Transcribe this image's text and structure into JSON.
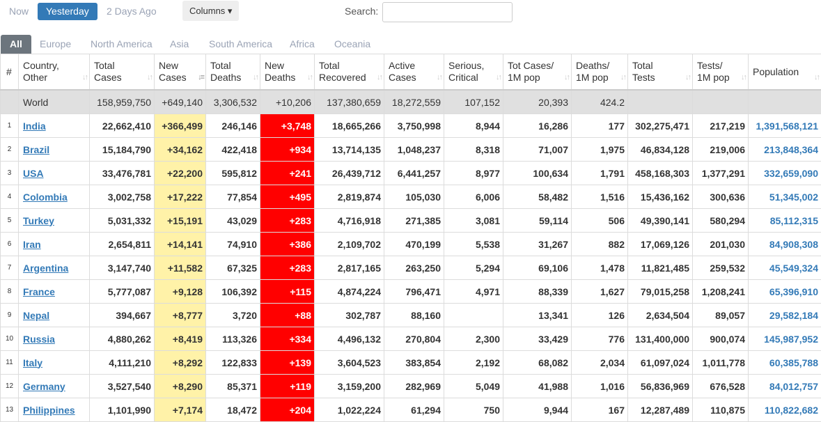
{
  "filters": {
    "now": "Now",
    "yesterday": "Yesterday",
    "two_days": "2 Days Ago",
    "columns": "Columns ▾",
    "search_label": "Search:",
    "search_value": ""
  },
  "tabs": [
    "All",
    "Europe",
    "North America",
    "Asia",
    "South America",
    "Africa",
    "Oceania"
  ],
  "headers": [
    [
      "#"
    ],
    [
      "Country,",
      "Other"
    ],
    [
      "Total",
      "Cases"
    ],
    [
      "New",
      "Cases"
    ],
    [
      "Total",
      "Deaths"
    ],
    [
      "New",
      "Deaths"
    ],
    [
      "Total",
      "Recovered"
    ],
    [
      "Active",
      "Cases"
    ],
    [
      "Serious,",
      "Critical"
    ],
    [
      "Tot Cases/",
      "1M pop"
    ],
    [
      "Deaths/",
      "1M pop"
    ],
    [
      "Total",
      "Tests"
    ],
    [
      "Tests/",
      "1M pop"
    ],
    [
      "Population"
    ]
  ],
  "world": [
    "",
    "World",
    "158,959,750",
    "+649,140",
    "3,306,532",
    "+10,206",
    "137,380,659",
    "18,272,559",
    "107,152",
    "20,393",
    "424.2",
    "",
    "",
    ""
  ],
  "rows": [
    [
      "1",
      "India",
      "22,662,410",
      "+366,499",
      "246,146",
      "+3,748",
      "18,665,266",
      "3,750,998",
      "8,944",
      "16,286",
      "177",
      "302,275,471",
      "217,219",
      "1,391,568,121"
    ],
    [
      "2",
      "Brazil",
      "15,184,790",
      "+34,162",
      "422,418",
      "+934",
      "13,714,135",
      "1,048,237",
      "8,318",
      "71,007",
      "1,975",
      "46,834,128",
      "219,006",
      "213,848,364"
    ],
    [
      "3",
      "USA",
      "33,476,781",
      "+22,200",
      "595,812",
      "+241",
      "26,439,712",
      "6,441,257",
      "8,977",
      "100,634",
      "1,791",
      "458,168,303",
      "1,377,291",
      "332,659,090"
    ],
    [
      "4",
      "Colombia",
      "3,002,758",
      "+17,222",
      "77,854",
      "+495",
      "2,819,874",
      "105,030",
      "6,006",
      "58,482",
      "1,516",
      "15,436,162",
      "300,636",
      "51,345,002"
    ],
    [
      "5",
      "Turkey",
      "5,031,332",
      "+15,191",
      "43,029",
      "+283",
      "4,716,918",
      "271,385",
      "3,081",
      "59,114",
      "506",
      "49,390,141",
      "580,294",
      "85,112,315"
    ],
    [
      "6",
      "Iran",
      "2,654,811",
      "+14,141",
      "74,910",
      "+386",
      "2,109,702",
      "470,199",
      "5,538",
      "31,267",
      "882",
      "17,069,126",
      "201,030",
      "84,908,308"
    ],
    [
      "7",
      "Argentina",
      "3,147,740",
      "+11,582",
      "67,325",
      "+283",
      "2,817,165",
      "263,250",
      "5,294",
      "69,106",
      "1,478",
      "11,821,485",
      "259,532",
      "45,549,324"
    ],
    [
      "8",
      "France",
      "5,777,087",
      "+9,128",
      "106,392",
      "+115",
      "4,874,224",
      "796,471",
      "4,971",
      "88,339",
      "1,627",
      "79,015,258",
      "1,208,241",
      "65,396,910"
    ],
    [
      "9",
      "Nepal",
      "394,667",
      "+8,777",
      "3,720",
      "+88",
      "302,787",
      "88,160",
      "",
      "13,341",
      "126",
      "2,634,504",
      "89,057",
      "29,582,184"
    ],
    [
      "10",
      "Russia",
      "4,880,262",
      "+8,419",
      "113,326",
      "+334",
      "4,496,132",
      "270,804",
      "2,300",
      "33,429",
      "776",
      "131,400,000",
      "900,074",
      "145,987,952"
    ],
    [
      "11",
      "Italy",
      "4,111,210",
      "+8,292",
      "122,833",
      "+139",
      "3,604,523",
      "383,854",
      "2,192",
      "68,082",
      "2,034",
      "61,097,024",
      "1,011,778",
      "60,385,788"
    ],
    [
      "12",
      "Germany",
      "3,527,540",
      "+8,290",
      "85,371",
      "+119",
      "3,159,200",
      "282,969",
      "5,049",
      "41,988",
      "1,016",
      "56,836,969",
      "676,528",
      "84,012,757"
    ],
    [
      "13",
      "Philippines",
      "1,101,990",
      "+7,174",
      "18,472",
      "+204",
      "1,022,224",
      "61,294",
      "750",
      "9,944",
      "167",
      "12,287,489",
      "110,875",
      "110,822,682"
    ]
  ]
}
